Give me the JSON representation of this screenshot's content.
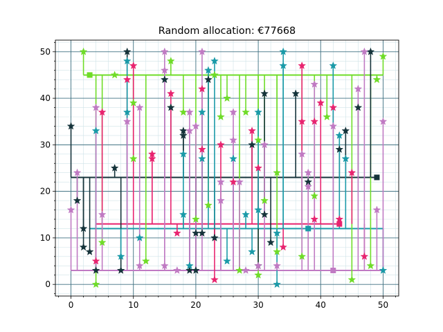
{
  "chart_data": {
    "type": "scatter",
    "title": "Random allocation: €77668",
    "xlabel": "",
    "ylabel": "",
    "xlim": [
      -2.5,
      52.5
    ],
    "ylim": [
      -2.5,
      52.5
    ],
    "xticks": [
      0,
      10,
      20,
      30,
      40,
      50
    ],
    "yticks": [
      0,
      10,
      20,
      30,
      40,
      50
    ],
    "grid": "major and minor",
    "colors": {
      "major_grid": "#3d6f80",
      "minor_grid": "#cfe3e8",
      "axes": "#000000"
    },
    "series": [
      {
        "color": "#6fdc28",
        "facility": [
          3,
          45
        ],
        "bus": {
          "x": [
            2,
            50
          ],
          "y": 45
        },
        "points": [
          [
            2,
            50
          ],
          [
            4,
            0
          ],
          [
            5,
            9
          ],
          [
            7,
            45
          ],
          [
            10,
            27
          ],
          [
            10,
            39
          ],
          [
            12,
            5
          ],
          [
            16,
            48
          ],
          [
            18,
            37
          ],
          [
            20,
            14
          ],
          [
            22,
            17
          ],
          [
            23,
            45
          ],
          [
            24,
            36
          ],
          [
            25,
            40
          ],
          [
            27,
            3
          ],
          [
            28,
            37
          ],
          [
            30,
            2
          ],
          [
            30,
            31
          ],
          [
            31,
            18
          ],
          [
            33,
            24
          ],
          [
            33,
            7
          ],
          [
            37,
            6
          ],
          [
            39,
            19
          ],
          [
            41,
            36
          ],
          [
            45,
            1
          ],
          [
            48,
            4
          ],
          [
            49,
            44
          ],
          [
            50,
            49
          ]
        ]
      },
      {
        "color": "#15333a",
        "facility": [
          49,
          23
        ],
        "bus": {
          "x": [
            0,
            49
          ],
          "y": 23
        },
        "points": [
          [
            0,
            34
          ],
          [
            1,
            18
          ],
          [
            2,
            12
          ],
          [
            2,
            8
          ],
          [
            3,
            7
          ],
          [
            4,
            3
          ],
          [
            7,
            25
          ],
          [
            8,
            3
          ],
          [
            9,
            50
          ],
          [
            15,
            44
          ],
          [
            16,
            38
          ],
          [
            18,
            33
          ],
          [
            18,
            32
          ],
          [
            19,
            3
          ],
          [
            20,
            11
          ],
          [
            20,
            3
          ],
          [
            21,
            11
          ],
          [
            22,
            44
          ],
          [
            23,
            10
          ],
          [
            29,
            30
          ],
          [
            30,
            4
          ],
          [
            31,
            41
          ],
          [
            31,
            15
          ],
          [
            32,
            9
          ],
          [
            36,
            41
          ],
          [
            38,
            22
          ],
          [
            43,
            29
          ],
          [
            44,
            33
          ],
          [
            46,
            38
          ],
          [
            48,
            50
          ]
        ]
      },
      {
        "color": "#e8246f",
        "facility": [
          43,
          13
        ],
        "bus": {
          "x": [
            4,
            43
          ],
          "y": 13
        },
        "points": [
          [
            4,
            5
          ],
          [
            5,
            37
          ],
          [
            9,
            44
          ],
          [
            10,
            47
          ],
          [
            13,
            28
          ],
          [
            13,
            27
          ],
          [
            16,
            41
          ],
          [
            17,
            11
          ],
          [
            21,
            42
          ],
          [
            21,
            29
          ],
          [
            23,
            1
          ],
          [
            24,
            30
          ],
          [
            26,
            22
          ],
          [
            29,
            33
          ],
          [
            30,
            25
          ],
          [
            34,
            8
          ],
          [
            37,
            47
          ],
          [
            37,
            35
          ],
          [
            39,
            35
          ],
          [
            39,
            14
          ],
          [
            40,
            39
          ],
          [
            42,
            38
          ],
          [
            43,
            14
          ],
          [
            45,
            24
          ],
          [
            47,
            6
          ]
        ]
      },
      {
        "color": "#1a9aa8",
        "facility": [
          38,
          12
        ],
        "bus": {
          "x": [
            3,
            50
          ],
          "y": 12
        },
        "points": [
          [
            4,
            33
          ],
          [
            8,
            6
          ],
          [
            9,
            37
          ],
          [
            9,
            48
          ],
          [
            11,
            10
          ],
          [
            18,
            15
          ],
          [
            18,
            28
          ],
          [
            19,
            4
          ],
          [
            21,
            27
          ],
          [
            21,
            37
          ],
          [
            22,
            46
          ],
          [
            23,
            48
          ],
          [
            25,
            5
          ],
          [
            26,
            27
          ],
          [
            28,
            15
          ],
          [
            29,
            7
          ],
          [
            30,
            37
          ],
          [
            30,
            16
          ],
          [
            33,
            0
          ],
          [
            33,
            11
          ],
          [
            34,
            47
          ],
          [
            34,
            50
          ],
          [
            43,
            32
          ],
          [
            44,
            27
          ],
          [
            42,
            47
          ],
          [
            50,
            3
          ]
        ]
      },
      {
        "color": "#c07ac3",
        "facility": [
          42,
          3
        ],
        "bus": {
          "x": [
            0,
            50
          ],
          "y": 3
        },
        "points": [
          [
            0,
            16
          ],
          [
            1,
            24
          ],
          [
            4,
            38
          ],
          [
            5,
            15
          ],
          [
            9,
            35
          ],
          [
            11,
            4
          ],
          [
            11,
            38
          ],
          [
            15,
            4
          ],
          [
            15,
            46
          ],
          [
            15,
            50
          ],
          [
            17,
            3
          ],
          [
            19,
            37
          ],
          [
            19,
            33
          ],
          [
            20,
            34
          ],
          [
            21,
            50
          ],
          [
            24,
            18
          ],
          [
            24,
            22
          ],
          [
            26,
            31
          ],
          [
            26,
            37
          ],
          [
            27,
            22
          ],
          [
            28,
            3
          ],
          [
            30,
            4
          ],
          [
            31,
            30
          ],
          [
            33,
            4
          ],
          [
            37,
            28
          ],
          [
            38,
            24
          ],
          [
            38,
            21
          ],
          [
            39,
            43
          ],
          [
            42,
            34
          ],
          [
            46,
            42
          ],
          [
            47,
            50
          ],
          [
            49,
            16
          ],
          [
            50,
            35
          ]
        ]
      }
    ]
  }
}
